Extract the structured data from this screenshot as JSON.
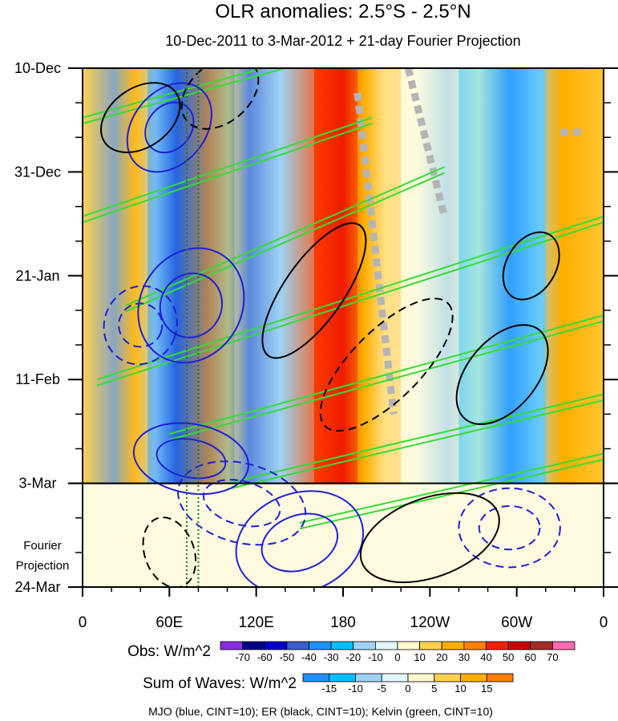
{
  "chart_data": {
    "type": "heatmap",
    "title": "OLR anomalies: 2.5°S - 2.5°N",
    "subtitle": "10-Dec-2011 to 3-Mar-2012 + 21-day Fourier Projection",
    "x_ticks": [
      "0",
      "60E",
      "120E",
      "180",
      "120W",
      "60W",
      "0"
    ],
    "x_tick_values": [
      0,
      60,
      120,
      180,
      240,
      300,
      360
    ],
    "xlim": [
      0,
      360
    ],
    "y_ticks": [
      "10-Dec",
      "31-Dec",
      "21-Jan",
      "11-Feb",
      "3-Mar",
      "24-Mar"
    ],
    "y_tick_days": [
      0,
      21,
      42,
      63,
      84,
      105
    ],
    "ylim_days": [
      0,
      105
    ],
    "projection_start_day": 84,
    "projection_label": [
      "Fourier",
      "Projection"
    ],
    "reference_longitudes": [
      72,
      80
    ],
    "obs_colorbar": {
      "label": "Obs: W/m^2",
      "tick_labels": [
        "-70",
        "-60",
        "-50",
        "-40",
        "-30",
        "-20",
        "-10",
        "0",
        "10",
        "20",
        "30",
        "40",
        "50",
        "60",
        "70"
      ],
      "colors": [
        "#8a2be2",
        "#00008b",
        "#0000cd",
        "#3a5fcd",
        "#1e90ff",
        "#00bfff",
        "#9fd3f5",
        "#e0f7ff",
        "#fffacd",
        "#ffd24d",
        "#ffae00",
        "#ff7f00",
        "#ff2000",
        "#cc0000",
        "#a52a2a",
        "#ff69b4"
      ]
    },
    "waves_colorbar": {
      "label": "Sum of Waves: W/m^2",
      "tick_labels": [
        "-15",
        "-10",
        "-5",
        "0",
        "5",
        "10",
        "15"
      ],
      "colors": [
        "#1e90ff",
        "#00bfff",
        "#9fd3f5",
        "#e0f7ff",
        "#fffacd",
        "#ffd24d",
        "#ffae00",
        "#ff7f00"
      ]
    },
    "legend_text": "MJO (blue, CINT=10); ER (black, CINT=10); Kelvin (green, CINT=10)",
    "series_colors": {
      "mjo": "#1f1fd6",
      "er": "#000000",
      "kelvin": "#33dd33"
    },
    "observed_anomaly_bands": [
      {
        "lon_start": 0,
        "lon_end": 45,
        "value": 12
      },
      {
        "lon_start": 45,
        "lon_end": 105,
        "value": -35
      },
      {
        "lon_start": 105,
        "lon_end": 160,
        "value": -20
      },
      {
        "lon_start": 160,
        "lon_end": 190,
        "value": 45
      },
      {
        "lon_start": 190,
        "lon_end": 220,
        "value": 20
      },
      {
        "lon_start": 220,
        "lon_end": 260,
        "value": 5
      },
      {
        "lon_start": 260,
        "lon_end": 320,
        "value": -25
      },
      {
        "lon_start": 320,
        "lon_end": 360,
        "value": 25
      }
    ],
    "kelvin_waves": [
      {
        "lon_start": 0,
        "day_start": 10,
        "lon_end": 150,
        "day_end": -2
      },
      {
        "lon_start": 0,
        "day_start": 30,
        "lon_end": 200,
        "day_end": 10
      },
      {
        "lon_start": 30,
        "day_start": 48,
        "lon_end": 250,
        "day_end": 20
      },
      {
        "lon_start": 10,
        "day_start": 63,
        "lon_end": 360,
        "day_end": 30
      },
      {
        "lon_start": 60,
        "day_start": 74,
        "lon_end": 360,
        "day_end": 50
      },
      {
        "lon_start": 100,
        "day_start": 84,
        "lon_end": 360,
        "day_end": 66
      },
      {
        "lon_start": 150,
        "day_start": 92,
        "lon_end": 360,
        "day_end": 78
      }
    ],
    "mjo_contours": [
      {
        "lon": 60,
        "day": 12,
        "rx": 25,
        "ry": 10,
        "rot": 40,
        "dashed": false
      },
      {
        "lon": 75,
        "day": 48,
        "rx": 35,
        "ry": 12,
        "rot": 30,
        "dashed": false
      },
      {
        "lon": 40,
        "day": 52,
        "rx": 25,
        "ry": 8,
        "rot": 20,
        "dashed": true
      },
      {
        "lon": 150,
        "day": 96,
        "rx": 45,
        "ry": 10,
        "rot": -20,
        "dashed": false
      },
      {
        "lon": 110,
        "day": 88,
        "rx": 45,
        "ry": 8,
        "rot": 15,
        "dashed": true
      },
      {
        "lon": 75,
        "day": 79,
        "rx": 40,
        "ry": 7,
        "rot": 10,
        "dashed": false
      },
      {
        "lon": 295,
        "day": 93,
        "rx": 35,
        "ry": 8,
        "rot": 0,
        "dashed": true
      }
    ],
    "er_contours": [
      {
        "lon": 40,
        "day": 10,
        "rx": 30,
        "ry": 6,
        "rot": -35,
        "dashed": false
      },
      {
        "lon": 95,
        "day": 5,
        "rx": 30,
        "ry": 6,
        "rot": -40,
        "dashed": true
      },
      {
        "lon": 160,
        "day": 45,
        "rx": 55,
        "ry": 6,
        "rot": -55,
        "dashed": false
      },
      {
        "lon": 210,
        "day": 60,
        "rx": 60,
        "ry": 7,
        "rot": -45,
        "dashed": true
      },
      {
        "lon": 290,
        "day": 62,
        "rx": 40,
        "ry": 7,
        "rot": -50,
        "dashed": false
      },
      {
        "lon": 310,
        "day": 40,
        "rx": 25,
        "ry": 5,
        "rot": -60,
        "dashed": false
      },
      {
        "lon": 240,
        "day": 95,
        "rx": 50,
        "ry": 8,
        "rot": -20,
        "dashed": false
      },
      {
        "lon": 60,
        "day": 98,
        "rx": 25,
        "ry": 5,
        "rot": 70,
        "dashed": true
      }
    ],
    "gray_missing_streaks": [
      {
        "lon_start": 190,
        "day_start": 5,
        "lon_end": 215,
        "day_end": 70
      },
      {
        "lon_start": 225,
        "day_start": 0,
        "lon_end": 250,
        "day_end": 30
      },
      {
        "lon_start": 330,
        "day_start": 13,
        "lon_end": 345,
        "day_end": 13
      }
    ]
  }
}
